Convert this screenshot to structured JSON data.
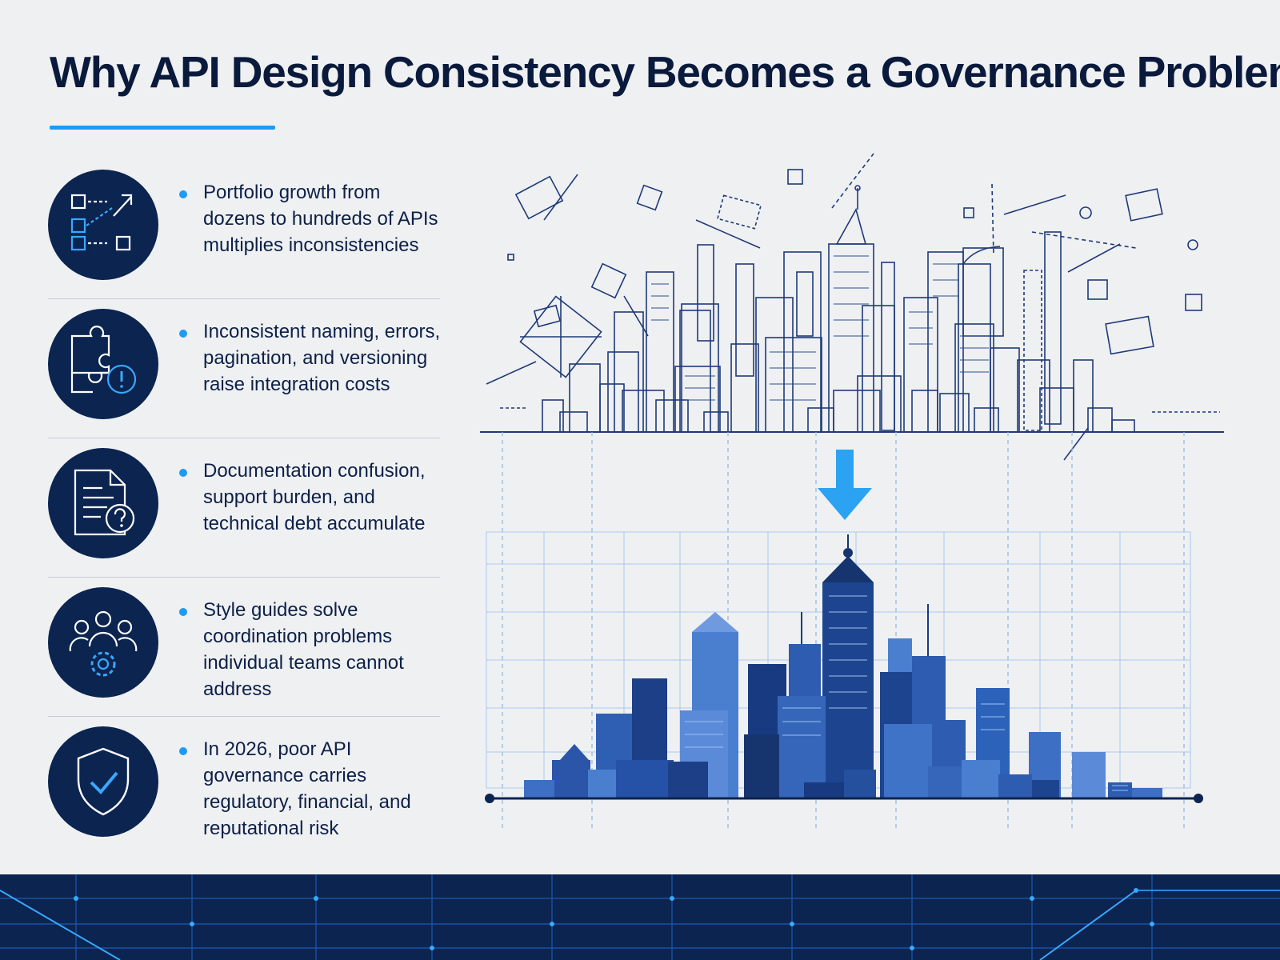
{
  "title": "Why API Design Consistency Becomes a Governance Problem",
  "points": [
    {
      "icon": "api-connections-icon",
      "text": "Portfolio growth from dozens to hundreds of APIs multiplies inconsistencies"
    },
    {
      "icon": "puzzle-warning-icon",
      "text": "Inconsistent naming, errors, pagination, and versioning raise integration costs"
    },
    {
      "icon": "document-question-icon",
      "text": "Documentation confusion, support burden, and technical debt accumulate"
    },
    {
      "icon": "team-gear-icon",
      "text": "Style guides solve coordination problems individual teams cannot address"
    },
    {
      "icon": "shield-check-icon",
      "text": "In 2026, poor API governance carries regulatory, financial, and reputational risk"
    }
  ],
  "illustration": {
    "top_icon": "chaotic-wireframe-skyline-icon",
    "arrow_icon": "arrow-down-icon",
    "bottom_icon": "organized-blue-skyline-icon"
  },
  "colors": {
    "background": "#eff0f2",
    "navy": "#0b2450",
    "accent": "#1d9bf0",
    "skyline_blue": "#2f5fb3"
  }
}
